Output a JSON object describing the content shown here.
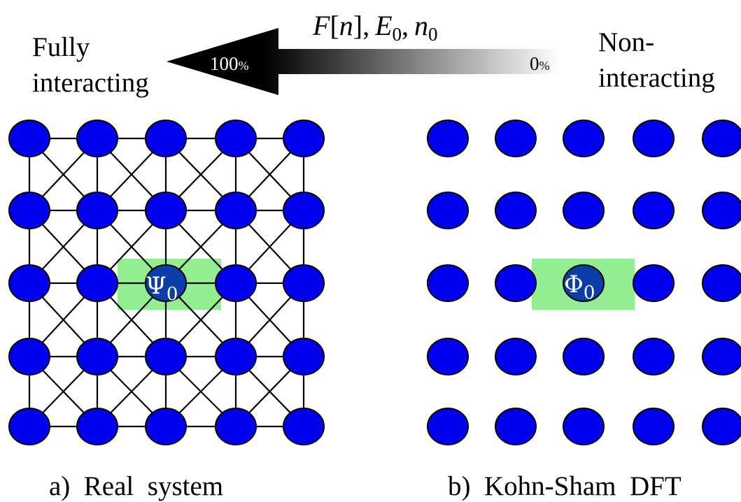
{
  "header": {
    "left_label_line1": "Fully",
    "left_label_line2": "interacting",
    "right_label_line1": "Non-",
    "right_label_line2": "interacting",
    "arrow_title": {
      "F": "F",
      "bracket_open": "[",
      "n": "n",
      "bracket_close": "],",
      "E": "E",
      "E_sub": "0",
      "comma": ",",
      "n0": "n",
      "n0_sub": "0"
    },
    "arrow_start_number": "100",
    "arrow_start_unit": "%",
    "arrow_end_number": "0",
    "arrow_end_unit": "%"
  },
  "panel_a": {
    "caption": "a)  Real  system",
    "highlight_symbol": "Ψ",
    "highlight_sub": "0"
  },
  "panel_b": {
    "caption": "b)  Kohn-Sham  DFT",
    "highlight_symbol": "Φ",
    "highlight_sub": "0"
  },
  "colors": {
    "node": "#0000ee",
    "node_highlight": "#0b3ea8",
    "highlight_box": "#93ee93",
    "arrow_dark": "#000000",
    "arrow_light": "#ffffff"
  },
  "grid": {
    "rows": 5,
    "cols": 5,
    "highlight_row": 3,
    "highlight_col": 3
  }
}
